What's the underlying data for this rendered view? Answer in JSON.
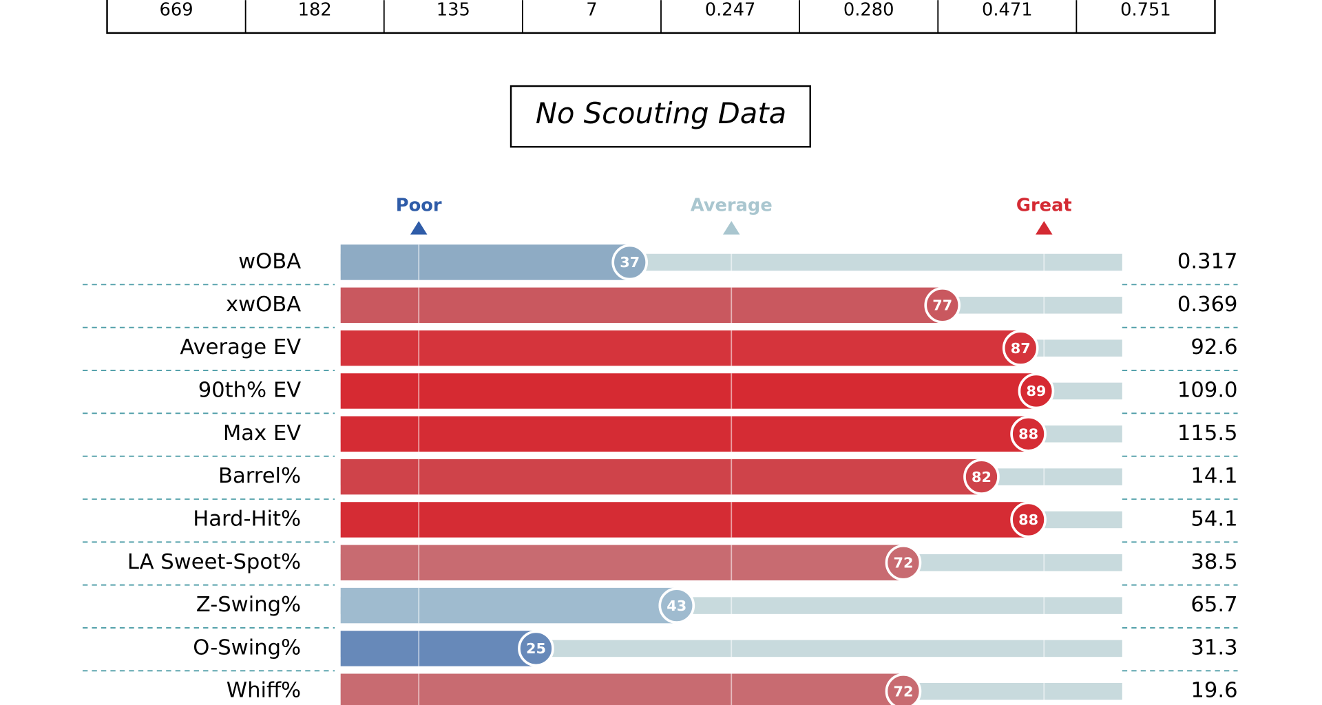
{
  "table": {
    "rows": [
      [
        "669",
        "182",
        "135",
        "7",
        "0.247",
        "0.280",
        "0.471",
        "0.751"
      ]
    ]
  },
  "scouting_box": {
    "title": "No Scouting Data"
  },
  "chart_data": {
    "type": "bar",
    "orientation": "horizontal",
    "categories": [
      "wOBA",
      "xwOBA",
      "Average EV",
      "90th% EV",
      "Max EV",
      "Barrel%",
      "Hard-Hit%",
      "LA Sweet-Spot%",
      "Z-Swing%",
      "O-Swing%",
      "Whiff%"
    ],
    "values": [
      37,
      77,
      87,
      89,
      88,
      82,
      88,
      72,
      43,
      25,
      72
    ],
    "colors": [
      "#8eabc4",
      "#c9585f",
      "#d5343c",
      "#d62a32",
      "#d52c34",
      "#cf434a",
      "#d52c34",
      "#c86b71",
      "#9fbbcf",
      "#6789b9",
      "#c86b71"
    ],
    "stats": [
      "0.317",
      "0.369",
      "92.6",
      "109.0",
      "115.5",
      "14.1",
      "54.1",
      "38.5",
      "65.7",
      "31.3",
      "19.6"
    ],
    "xlim": [
      0,
      100
    ],
    "xticks": [
      {
        "value": 10,
        "label": "Poor"
      },
      {
        "value": 50,
        "label": "Average"
      },
      {
        "value": 90,
        "label": "Great"
      }
    ],
    "xtick_colors": [
      "#2f5ca8",
      "#a9c6cf",
      "#d42a33"
    ],
    "track_color": "#c8dadd",
    "grid": true
  }
}
